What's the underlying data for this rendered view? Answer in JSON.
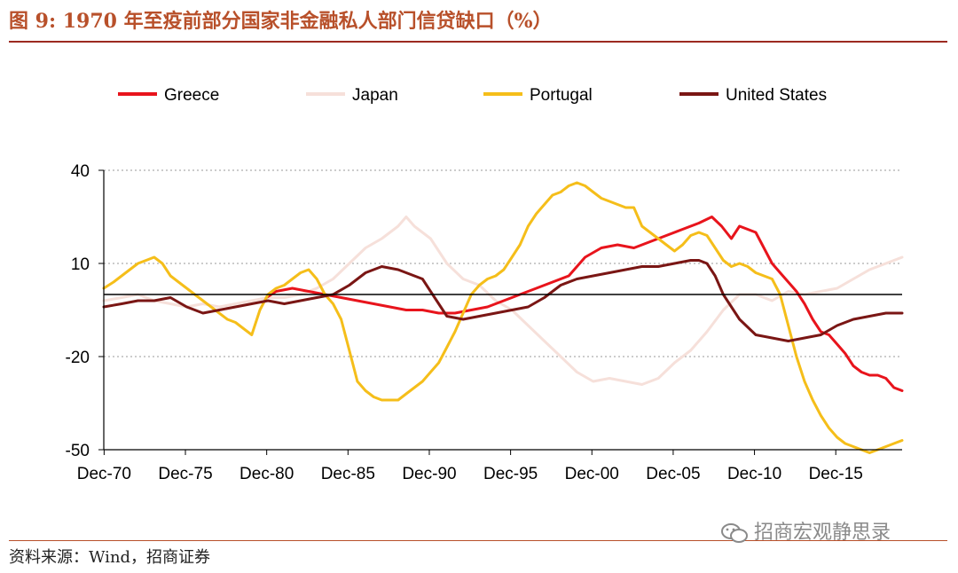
{
  "header": {
    "title": "图 9:   1970 年至疫前部分国家非金融私人部门信贷缺口（%）"
  },
  "footer": {
    "source": "资料来源：Wind，招商证券",
    "watermark": "招商宏观静思录"
  },
  "chart_data": {
    "type": "line",
    "title": "",
    "xlabel": "",
    "ylabel": "",
    "ylim": [
      -50,
      40
    ],
    "yticks": [
      40,
      10,
      -20,
      -50
    ],
    "xlim": [
      1970.9,
      2020.0
    ],
    "xticks": [
      {
        "label": "Dec-70",
        "value": 1970.92
      },
      {
        "label": "Dec-75",
        "value": 1975.92
      },
      {
        "label": "Dec-80",
        "value": 1980.92
      },
      {
        "label": "Dec-85",
        "value": 1985.92
      },
      {
        "label": "Dec-90",
        "value": 1990.92
      },
      {
        "label": "Dec-95",
        "value": 1995.92
      },
      {
        "label": "Dec-00",
        "value": 2000.92
      },
      {
        "label": "Dec-05",
        "value": 2005.92
      },
      {
        "label": "Dec-10",
        "value": 2010.92
      },
      {
        "label": "Dec-15",
        "value": 2015.92
      }
    ],
    "zero_line": 0,
    "grid": "horizontal dotted",
    "legend_position": "top",
    "series": [
      {
        "name": "Greece",
        "color": "#e8141c",
        "x": [
          1980.9,
          1981.5,
          1982.5,
          1983.5,
          1984.5,
          1985.5,
          1986.5,
          1987.5,
          1988.5,
          1989.5,
          1990.5,
          1991.5,
          1992.5,
          1993.5,
          1994.5,
          1995.5,
          1996.5,
          1997.5,
          1998.5,
          1999.5,
          2000.5,
          2001.5,
          2002.5,
          2003.5,
          2004.5,
          2005.5,
          2006.5,
          2007.5,
          2008.3,
          2008.9,
          2009.5,
          2010.0,
          2010.5,
          2011.0,
          2011.5,
          2012.0,
          2012.5,
          2013.0,
          2013.5,
          2014.0,
          2014.5,
          2015.0,
          2015.5,
          2016.0,
          2016.5,
          2017.0,
          2017.5,
          2018.0,
          2018.5,
          2019.0,
          2019.5,
          2020.0
        ],
        "values": [
          -1,
          1,
          2,
          1,
          0,
          -1,
          -2,
          -3,
          -4,
          -5,
          -5,
          -6,
          -6,
          -5,
          -4,
          -2,
          0,
          2,
          4,
          6,
          12,
          15,
          16,
          15,
          17,
          19,
          21,
          23,
          25,
          22,
          18,
          22,
          21,
          20,
          15,
          10,
          7,
          4,
          1,
          -3,
          -8,
          -12,
          -13,
          -16,
          -19,
          -23,
          -25,
          -26,
          -26,
          -27,
          -30,
          -31
        ]
      },
      {
        "name": "Japan",
        "color": "#f6e0da",
        "x": [
          1970.9,
          1972,
          1973,
          1974,
          1975,
          1976,
          1977,
          1978,
          1979,
          1980,
          1981,
          1982,
          1983,
          1984,
          1985,
          1986,
          1987,
          1988,
          1989,
          1989.5,
          1990,
          1991,
          1992,
          1993,
          1994,
          1995,
          1996,
          1997,
          1998,
          1999,
          2000,
          2001,
          2002,
          2003,
          2004,
          2005,
          2006,
          2007,
          2008,
          2009,
          2010,
          2011,
          2012,
          2013,
          2014,
          2015,
          2016,
          2017,
          2018,
          2019,
          2020
        ],
        "values": [
          -2,
          -1,
          0,
          -2,
          -3,
          -4,
          -3,
          -4,
          -3,
          -2,
          -1,
          -1,
          0,
          2,
          5,
          10,
          15,
          18,
          22,
          25,
          22,
          18,
          10,
          5,
          3,
          -2,
          -5,
          -10,
          -15,
          -20,
          -25,
          -28,
          -27,
          -28,
          -29,
          -27,
          -22,
          -18,
          -12,
          -5,
          0,
          0,
          -2,
          1,
          0,
          1,
          2,
          5,
          8,
          10,
          12
        ]
      },
      {
        "name": "Portugal",
        "color": "#f5be1a",
        "x": [
          1970.9,
          1971.5,
          1972.5,
          1973.0,
          1973.5,
          1974.0,
          1974.5,
          1975.0,
          1975.5,
          1976.0,
          1976.5,
          1977.0,
          1977.5,
          1978.0,
          1978.5,
          1979.0,
          1979.5,
          1980.0,
          1980.5,
          1981.0,
          1981.5,
          1982.0,
          1982.5,
          1983.0,
          1983.5,
          1984.0,
          1984.5,
          1985.0,
          1985.5,
          1986.0,
          1986.5,
          1987.0,
          1987.5,
          1988.0,
          1988.5,
          1989.0,
          1989.5,
          1990.0,
          1990.5,
          1991.0,
          1991.5,
          1992.0,
          1992.5,
          1993.0,
          1993.5,
          1994.0,
          1994.5,
          1995.0,
          1995.5,
          1996.0,
          1996.5,
          1997.0,
          1997.5,
          1998.0,
          1998.5,
          1999.0,
          1999.5,
          2000.0,
          2000.5,
          2001.0,
          2001.5,
          2002.0,
          2002.5,
          2003.0,
          2003.5,
          2004.0,
          2004.5,
          2005.0,
          2005.5,
          2006.0,
          2006.5,
          2007.0,
          2007.5,
          2008.0,
          2008.5,
          2009.0,
          2009.5,
          2010.0,
          2010.5,
          2011.0,
          2011.5,
          2012.0,
          2012.5,
          2013.0,
          2013.5,
          2014.0,
          2014.5,
          2015.0,
          2015.5,
          2016.0,
          2016.5,
          2017.0,
          2017.5,
          2018.0,
          2018.5,
          2019.0,
          2019.5,
          2020.0
        ],
        "values": [
          2,
          4,
          8,
          10,
          11,
          12,
          10,
          6,
          4,
          2,
          0,
          -2,
          -4,
          -6,
          -8,
          -9,
          -11,
          -13,
          -5,
          0,
          2,
          3,
          5,
          7,
          8,
          5,
          0,
          -3,
          -8,
          -18,
          -28,
          -31,
          -33,
          -34,
          -34,
          -34,
          -32,
          -30,
          -28,
          -25,
          -22,
          -17,
          -12,
          -6,
          0,
          3,
          5,
          6,
          8,
          12,
          16,
          22,
          26,
          29,
          32,
          33,
          35,
          36,
          35,
          33,
          31,
          30,
          29,
          28,
          28,
          22,
          20,
          18,
          16,
          14,
          16,
          19,
          20,
          19,
          15,
          11,
          9,
          10,
          9,
          7,
          6,
          5,
          0,
          -10,
          -20,
          -28,
          -34,
          -39,
          -43,
          -46,
          -48,
          -49,
          -50,
          -51,
          -50,
          -49,
          -48,
          -47
        ]
      },
      {
        "name": "United States",
        "color": "#7a1614",
        "x": [
          1970.9,
          1972,
          1973,
          1974,
          1975,
          1976,
          1977,
          1978,
          1979,
          1980,
          1981,
          1982,
          1983,
          1984,
          1985,
          1986,
          1987,
          1988,
          1989,
          1990,
          1990.5,
          1991,
          1991.5,
          1992,
          1993,
          1994,
          1995,
          1996,
          1997,
          1998,
          1999,
          2000,
          2001,
          2002,
          2003,
          2004,
          2005,
          2006,
          2007,
          2007.5,
          2008,
          2008.5,
          2009,
          2010,
          2011,
          2012,
          2013,
          2014,
          2015,
          2016,
          2017,
          2018,
          2019,
          2020
        ],
        "values": [
          -4,
          -3,
          -2,
          -2,
          -1,
          -4,
          -6,
          -5,
          -4,
          -3,
          -2,
          -3,
          -2,
          -1,
          0,
          3,
          7,
          9,
          8,
          6,
          5,
          1,
          -3,
          -7,
          -8,
          -7,
          -6,
          -5,
          -4,
          -1,
          3,
          5,
          6,
          7,
          8,
          9,
          9,
          10,
          11,
          11,
          10,
          6,
          0,
          -8,
          -13,
          -14,
          -15,
          -14,
          -13,
          -10,
          -8,
          -7,
          -6,
          -6
        ]
      }
    ]
  }
}
